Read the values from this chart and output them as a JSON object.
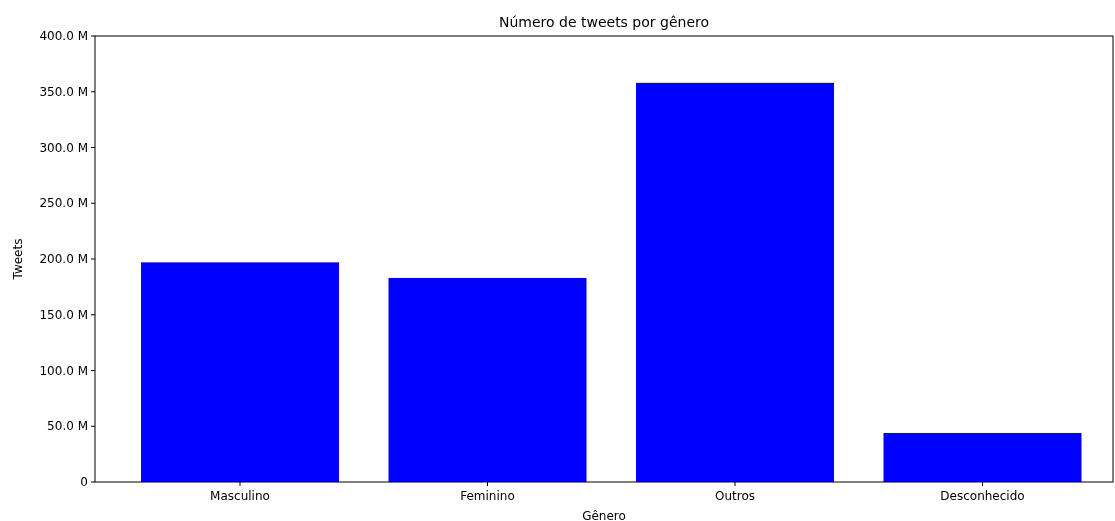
{
  "chart_data": {
    "type": "bar",
    "title": "Número de tweets por gênero",
    "xlabel": "Gênero",
    "ylabel": "Tweets",
    "categories": [
      "Masculino",
      "Feminino",
      "Outros",
      "Desconhecido"
    ],
    "values": [
      197,
      183,
      358,
      44
    ],
    "color": "#0000ff",
    "ylim": [
      0,
      400
    ],
    "yticks": [
      {
        "value": 0,
        "label": "0"
      },
      {
        "value": 50,
        "label": "50.0 M"
      },
      {
        "value": 100,
        "label": "100.0 M"
      },
      {
        "value": 150,
        "label": "150.0 M"
      },
      {
        "value": 200,
        "label": "200.0 M"
      },
      {
        "value": 250,
        "label": "250.0 M"
      },
      {
        "value": 300,
        "label": "300.0 M"
      },
      {
        "value": 350,
        "label": "350.0 M"
      },
      {
        "value": 400,
        "label": "400.0 M"
      }
    ]
  }
}
